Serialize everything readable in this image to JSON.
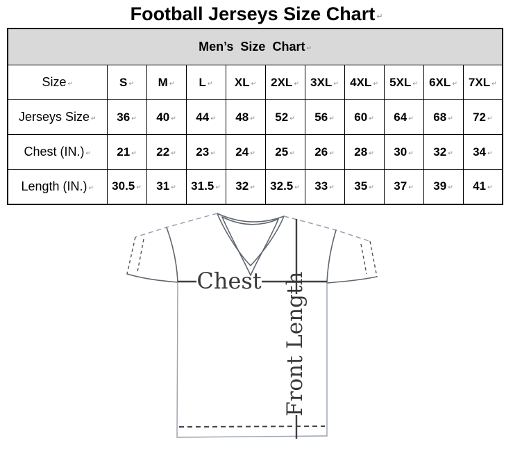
{
  "title": {
    "text": "Football Jerseys Size Chart"
  },
  "marks": {
    "return": "↵"
  },
  "chart_data": {
    "type": "table",
    "title": "Football Jerseys Size Chart",
    "section_header": "Men’s  Size  Chart",
    "columns": [
      "Size",
      "S",
      "M",
      "L",
      "XL",
      "2XL",
      "3XL",
      "4XL",
      "5XL",
      "6XL",
      "7XL"
    ],
    "rows": [
      {
        "label": "Jerseys Size",
        "values": [
          "36",
          "40",
          "44",
          "48",
          "52",
          "56",
          "60",
          "64",
          "68",
          "72"
        ]
      },
      {
        "label": "Chest (IN.)",
        "values": [
          "21",
          "22",
          "23",
          "24",
          "25",
          "26",
          "28",
          "30",
          "32",
          "34"
        ]
      },
      {
        "label": "Length (IN.)",
        "values": [
          "30.5",
          "31",
          "31.5",
          "32",
          "32.5",
          "33",
          "35",
          "37",
          "39",
          "41"
        ]
      }
    ]
  },
  "diagram": {
    "chest_label": "Chest",
    "front_length_label": "Front Length"
  },
  "colors": {
    "section_header_bg": "#d9d9d9",
    "table_border": "#000000",
    "measure_line": "#3f3f3f",
    "outline_dark": "#5f6670",
    "outline_light": "#98a1ae",
    "paragraph_mark": "#8c8c8c"
  }
}
